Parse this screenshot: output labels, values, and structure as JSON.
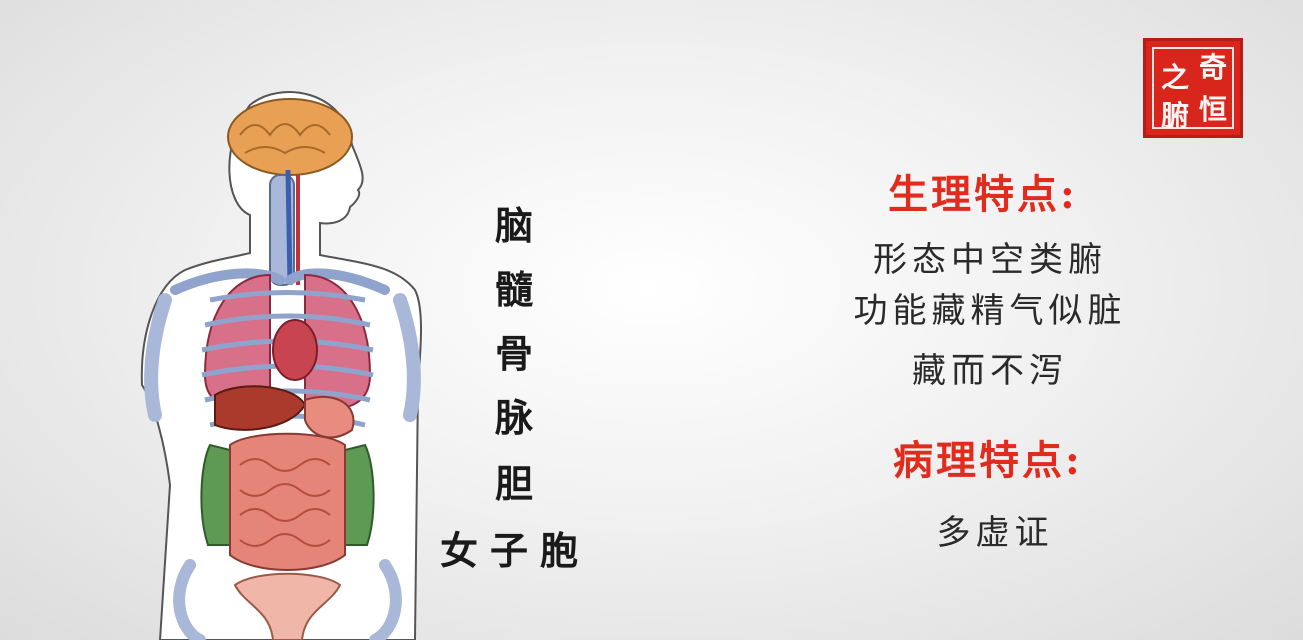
{
  "seal": {
    "chars": [
      "奇",
      "恒",
      "之",
      "腑"
    ]
  },
  "organs": [
    "脑",
    "髓",
    "骨",
    "脉",
    "胆",
    "女子胞"
  ],
  "physiology": {
    "heading": "生理特点:",
    "lines": [
      "形态中空类腑",
      "功能藏精气似脏",
      "藏而不泻"
    ]
  },
  "pathology": {
    "heading": "病理特点:",
    "lines": [
      "多虚证"
    ]
  },
  "colors": {
    "heading": "#e12b1d",
    "seal": "#d9261c",
    "brain": "#e8a055",
    "bone": "#a9b8d8",
    "lung": "#d9708a",
    "liver": "#a93a2c",
    "intestine": "#e58478",
    "colon": "#5f9a55"
  }
}
